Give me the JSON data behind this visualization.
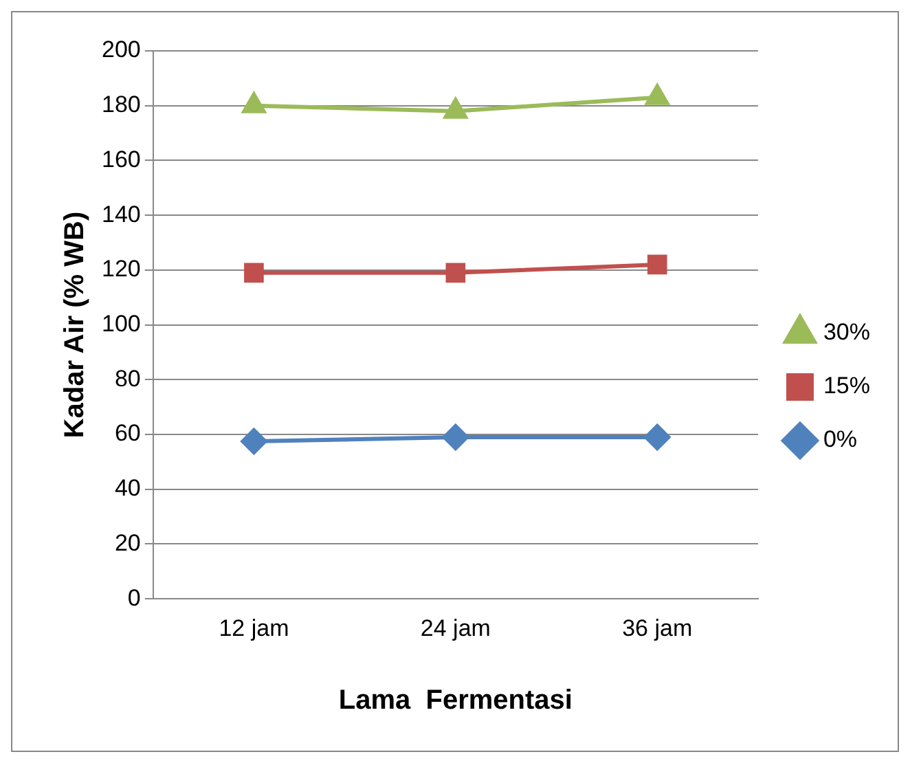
{
  "chart_data": {
    "type": "line",
    "xlabel": "Lama  Fermentasi",
    "ylabel": "Kadar Air (% WB)",
    "categories": [
      "12 jam",
      "24 jam",
      "36 jam"
    ],
    "series": [
      {
        "name": "30%",
        "color": "#9bbb59",
        "marker": "triangle",
        "values": [
          180,
          178,
          183
        ]
      },
      {
        "name": "15%",
        "color": "#c0504d",
        "marker": "square",
        "values": [
          119,
          119,
          122
        ]
      },
      {
        "name": "0%",
        "color": "#4f81bd",
        "marker": "diamond",
        "values": [
          57.5,
          59,
          59
        ]
      }
    ],
    "ylim": [
      0,
      200
    ],
    "yticks": [
      0,
      20,
      40,
      60,
      80,
      100,
      120,
      140,
      160,
      180,
      200
    ],
    "grid": "y",
    "legend": "right",
    "line_style": "solid"
  }
}
